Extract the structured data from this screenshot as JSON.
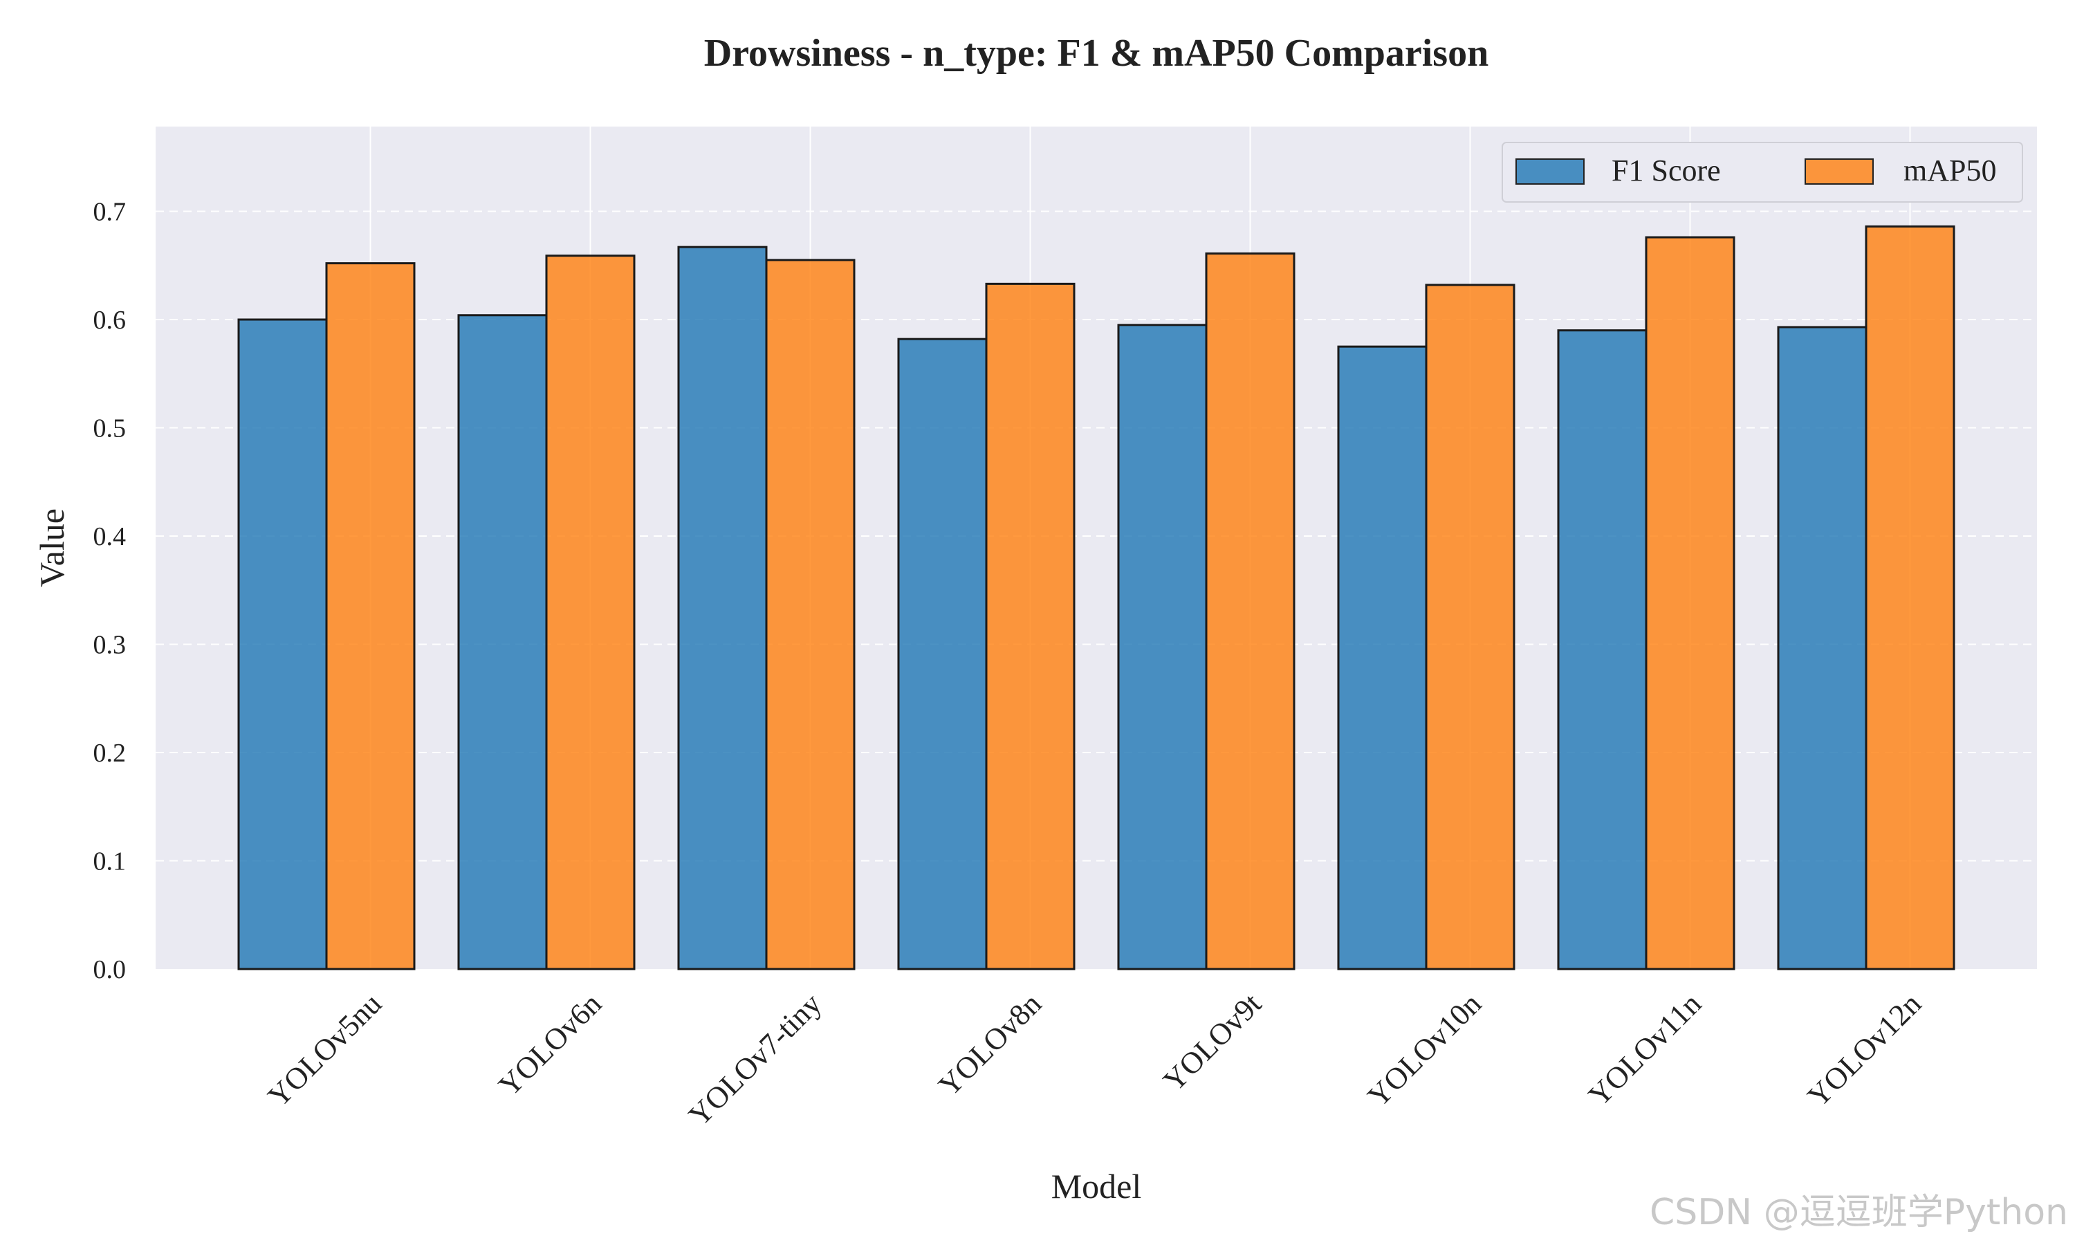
{
  "chart_data": {
    "type": "bar",
    "title": "Drowsiness - n_type: F1 & mAP50 Comparison",
    "xlabel": "Model",
    "ylabel": "Value",
    "categories": [
      "YOLOv5nu",
      "YOLOv6n",
      "YOLOv7-tiny",
      "YOLOv8n",
      "YOLOv9t",
      "YOLOv10n",
      "YOLOv11n",
      "YOLOv12n"
    ],
    "series": [
      {
        "name": "F1 Score",
        "color": "#1f77b4",
        "values": [
          0.6,
          0.604,
          0.667,
          0.582,
          0.595,
          0.575,
          0.59,
          0.593
        ]
      },
      {
        "name": "mAP50",
        "color": "#ff7f0e",
        "values": [
          0.652,
          0.659,
          0.655,
          0.633,
          0.661,
          0.632,
          0.676,
          0.686
        ]
      }
    ],
    "ylim": [
      0,
      0.78
    ],
    "yticks": [
      "0.0",
      "0.1",
      "0.2",
      "0.3",
      "0.4",
      "0.5",
      "0.6",
      "0.7"
    ],
    "grid": true,
    "legend_position": "top-right"
  },
  "watermark": "CSDN @逗逗班学Python"
}
